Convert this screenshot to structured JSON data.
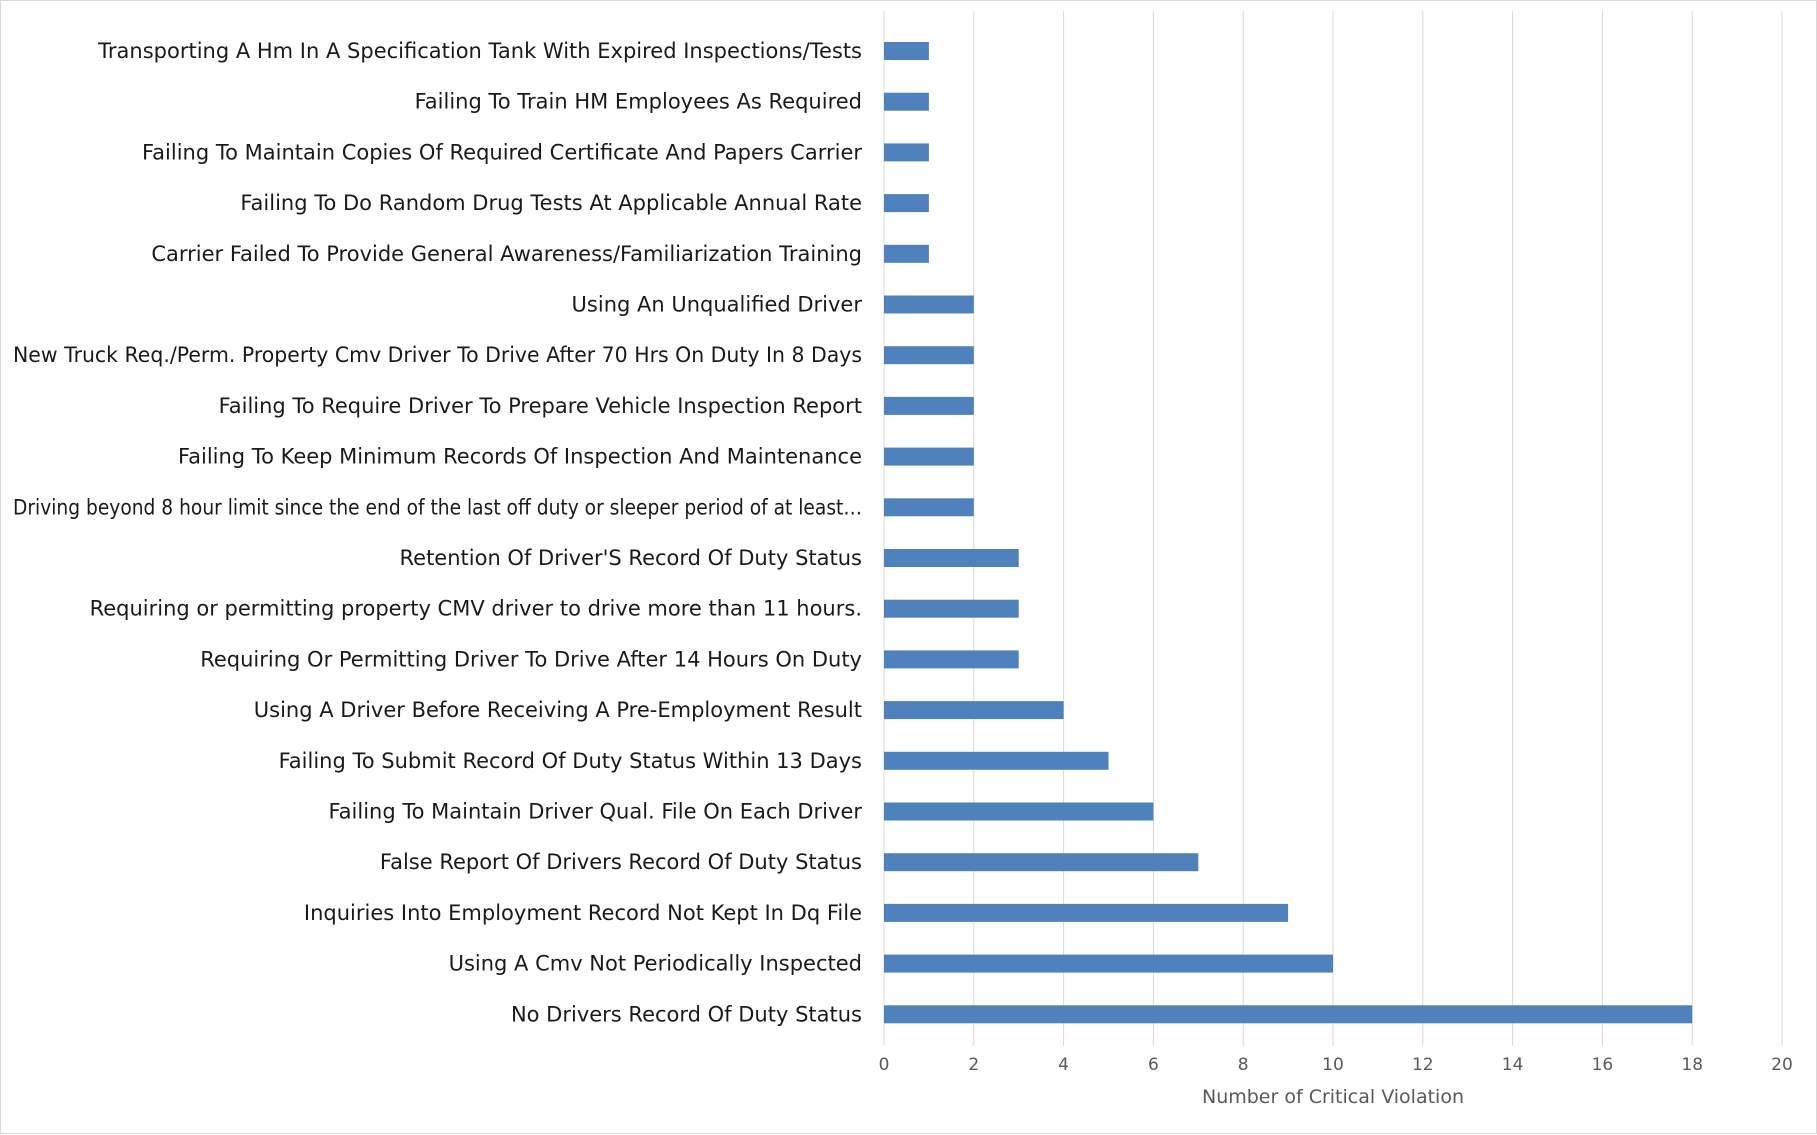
{
  "chart_data": {
    "type": "bar",
    "orientation": "horizontal",
    "title": "",
    "xlabel": "Number of Critical Violation",
    "ylabel": "",
    "xlim": [
      0,
      20
    ],
    "x_ticks": [
      0,
      2,
      4,
      6,
      8,
      10,
      12,
      14,
      16,
      18,
      20
    ],
    "grid": "vertical",
    "legend": "none",
    "bar_color": "#4f81bd",
    "categories": [
      "Transporting A Hm In A Specification Tank With Expired Inspections/Tests",
      "Failing To Train HM Employees As Required",
      "Failing To Maintain Copies Of Required Certificate And Papers Carrier",
      "Failing To Do Random Drug Tests At Applicable Annual Rate",
      "Carrier Failed To Provide General Awareness/Familiarization Training",
      "Using An Unqualified Driver",
      "New Truck Req./Perm. Property Cmv Driver To Drive After 70 Hrs On Duty In 8 Days",
      "Failing To Require Driver To Prepare Vehicle Inspection Report",
      "Failing To Keep Minimum Records Of Inspection And Maintenance",
      "Driving beyond 8 hour limit since the end of the last off duty or sleeper period of at least…",
      "Retention Of Driver'S Record Of Duty Status",
      "Requiring or permitting property CMV driver to drive more than 11 hours.",
      "Requiring Or Permitting Driver To Drive After 14 Hours On Duty",
      "Using A Driver Before Receiving A Pre-Employment Result",
      "Failing To Submit Record Of Duty Status Within 13 Days",
      "Failing To Maintain Driver Qual. File On Each Driver",
      "False Report Of Drivers Record Of Duty Status",
      "Inquiries Into Employment Record Not Kept In Dq File",
      "Using A Cmv Not Periodically Inspected",
      "No Drivers Record Of Duty Status"
    ],
    "values": [
      1,
      1,
      1,
      1,
      1,
      2,
      2,
      2,
      2,
      2,
      3,
      3,
      3,
      4,
      5,
      6,
      7,
      9,
      10,
      18
    ]
  }
}
